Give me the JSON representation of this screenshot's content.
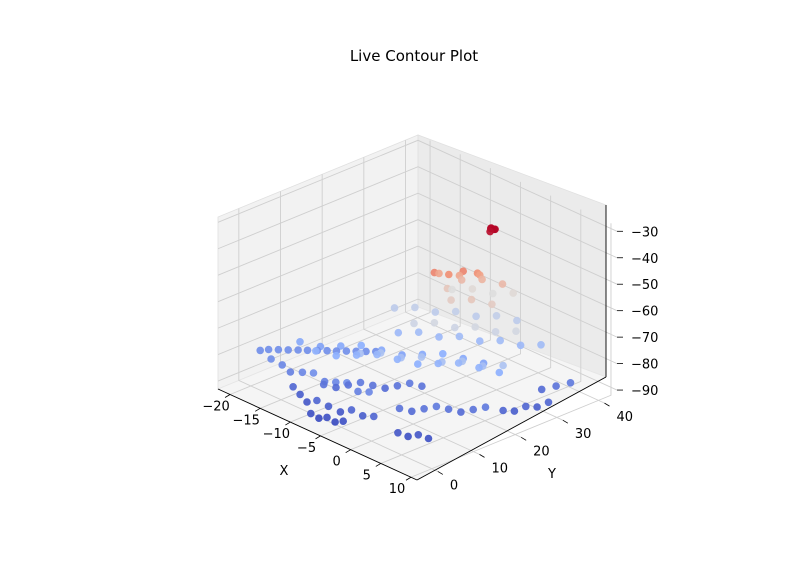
{
  "chart_data": {
    "type": "scatter",
    "projection": "3d",
    "title": "Live Contour Plot",
    "xlabel": "X",
    "ylabel": "Y",
    "zlabel": "",
    "xlim": [
      -22,
      11
    ],
    "ylim": [
      -5,
      43
    ],
    "zlim": [
      -93,
      -28
    ],
    "xticks": [
      "−20",
      "−15",
      "−10",
      "−5",
      "0",
      "5",
      "10"
    ],
    "yticks": [
      "0",
      "10",
      "20",
      "30",
      "40"
    ],
    "zticks": [
      "−30",
      "−40",
      "−50",
      "−60",
      "−70",
      "−80",
      "−90"
    ],
    "colormap": "coolwarm",
    "grid": true,
    "points": [
      [
        -19.5,
        1.5,
        -80
      ],
      [
        -19.0,
        2.8,
        -80
      ],
      [
        -18.2,
        4.0,
        -80
      ],
      [
        -17.4,
        5.2,
        -80
      ],
      [
        -16.6,
        6.4,
        -80
      ],
      [
        -15.8,
        7.5,
        -80
      ],
      [
        -15.0,
        8.7,
        -80
      ],
      [
        -14.2,
        9.9,
        -80
      ],
      [
        -13.4,
        11.0,
        -80
      ],
      [
        -12.6,
        12.2,
        -80
      ],
      [
        -11.8,
        13.4,
        -80
      ],
      [
        -11.0,
        14.6,
        -80
      ],
      [
        -10.2,
        15.8,
        -80
      ],
      [
        -17.0,
        0.5,
        -80
      ],
      [
        -15.5,
        1.0,
        -81
      ],
      [
        -14.0,
        0.8,
        -82
      ],
      [
        -12.5,
        1.5,
        -81
      ],
      [
        -11.0,
        2.0,
        -80
      ],
      [
        -9.5,
        2.5,
        -82
      ],
      [
        -8.0,
        3.0,
        -81
      ],
      [
        -6.5,
        3.5,
        -80
      ],
      [
        -5.0,
        4.0,
        -82
      ],
      [
        -3.5,
        4.5,
        -81
      ],
      [
        -13.0,
        0.0,
        -86
      ],
      [
        -11.5,
        -0.5,
        -87
      ],
      [
        -10.0,
        -1.0,
        -88
      ],
      [
        -8.5,
        -0.8,
        -86
      ],
      [
        -7.0,
        -0.2,
        -87
      ],
      [
        -5.5,
        0.5,
        -88
      ],
      [
        -4.0,
        1.0,
        -86
      ],
      [
        -2.5,
        1.5,
        -87
      ],
      [
        -1.0,
        2.0,
        -86
      ],
      [
        -8.0,
        -3.0,
        -89
      ],
      [
        -7.0,
        -2.5,
        -90
      ],
      [
        -6.0,
        -2.0,
        -89
      ],
      [
        -5.0,
        -1.5,
        -90
      ],
      [
        -4.0,
        -1.0,
        -89
      ],
      [
        -10.0,
        3.0,
        -84
      ],
      [
        -9.0,
        4.5,
        -85
      ],
      [
        -8.0,
        6.0,
        -84
      ],
      [
        -7.0,
        7.5,
        -83
      ],
      [
        -6.0,
        9.0,
        -84
      ],
      [
        -5.0,
        10.5,
        -85
      ],
      [
        -4.0,
        12.0,
        -84
      ],
      [
        -3.0,
        13.5,
        -83
      ],
      [
        -2.0,
        15.0,
        -84
      ],
      [
        0.5,
        6.0,
        -84
      ],
      [
        1.5,
        7.5,
        -85
      ],
      [
        2.5,
        9.0,
        -84
      ],
      [
        3.5,
        10.5,
        -83
      ],
      [
        4.5,
        12.0,
        -84
      ],
      [
        5.5,
        13.5,
        -85
      ],
      [
        6.5,
        15.0,
        -84
      ],
      [
        7.5,
        16.5,
        -83
      ],
      [
        3.0,
        2.0,
        -88
      ],
      [
        4.0,
        3.0,
        -89
      ],
      [
        5.0,
        4.0,
        -88
      ],
      [
        6.0,
        5.0,
        -89
      ],
      [
        8.0,
        20.0,
        -86
      ],
      [
        8.5,
        22.0,
        -87
      ],
      [
        9.0,
        24.0,
        -86
      ],
      [
        9.5,
        26.0,
        -87
      ],
      [
        10.0,
        28.0,
        -86
      ],
      [
        7.5,
        30.0,
        -85
      ],
      [
        8.5,
        32.0,
        -84
      ],
      [
        9.5,
        34.0,
        -83
      ],
      [
        -16.0,
        6.0,
        -76
      ],
      [
        -14.0,
        8.0,
        -77
      ],
      [
        -12.0,
        10.0,
        -76
      ],
      [
        -10.0,
        12.0,
        -75
      ],
      [
        -8.0,
        14.0,
        -76
      ],
      [
        -6.0,
        16.0,
        -77
      ],
      [
        -4.0,
        18.0,
        -76
      ],
      [
        -2.0,
        20.0,
        -75
      ],
      [
        0.0,
        22.0,
        -76
      ],
      [
        2.0,
        24.0,
        -77
      ],
      [
        -12.0,
        4.0,
        -74
      ],
      [
        -10.0,
        6.0,
        -75
      ],
      [
        -8.0,
        8.0,
        -74
      ],
      [
        -6.0,
        10.0,
        -73
      ],
      [
        -4.0,
        12.0,
        -74
      ],
      [
        -2.0,
        14.0,
        -75
      ],
      [
        0.0,
        16.0,
        -74
      ],
      [
        2.0,
        18.0,
        -73
      ],
      [
        4.0,
        20.0,
        -74
      ],
      [
        6.0,
        22.0,
        -75
      ],
      [
        -8.0,
        18.0,
        -72
      ],
      [
        -6.0,
        20.0,
        -71
      ],
      [
        -4.0,
        22.0,
        -72
      ],
      [
        -2.0,
        24.0,
        -71
      ],
      [
        0.0,
        26.0,
        -72
      ],
      [
        2.0,
        28.0,
        -71
      ],
      [
        4.0,
        30.0,
        -72
      ],
      [
        6.0,
        32.0,
        -71
      ],
      [
        -6.0,
        6.0,
        -70
      ],
      [
        -4.0,
        8.0,
        -69
      ],
      [
        -2.0,
        10.0,
        -70
      ],
      [
        0.0,
        12.0,
        -69
      ],
      [
        2.0,
        14.0,
        -70
      ],
      [
        4.0,
        16.0,
        -69
      ],
      [
        6.0,
        18.0,
        -70
      ],
      [
        8.0,
        20.0,
        -69
      ],
      [
        -10.0,
        20.0,
        -66
      ],
      [
        -8.0,
        22.0,
        -65
      ],
      [
        -6.0,
        24.0,
        -66
      ],
      [
        -4.0,
        26.0,
        -65
      ],
      [
        -2.0,
        28.0,
        -66
      ],
      [
        0.0,
        30.0,
        -65
      ],
      [
        2.0,
        32.0,
        -66
      ],
      [
        -4.0,
        16.0,
        -63
      ],
      [
        -2.0,
        18.0,
        -62
      ],
      [
        0.0,
        20.0,
        -63
      ],
      [
        2.0,
        22.0,
        -62
      ],
      [
        4.0,
        24.0,
        -63
      ],
      [
        6.0,
        26.0,
        -62
      ],
      [
        -6.0,
        28.0,
        -60
      ],
      [
        -4.0,
        30.0,
        -59
      ],
      [
        -2.0,
        32.0,
        -60
      ],
      [
        0.0,
        34.0,
        -59
      ],
      [
        -2.0,
        22.0,
        -56
      ],
      [
        0.0,
        24.0,
        -55
      ],
      [
        2.0,
        26.0,
        -56
      ],
      [
        -4.0,
        24.0,
        -55
      ],
      [
        -3.0,
        26.0,
        -52
      ],
      [
        -1.0,
        28.0,
        -51
      ],
      [
        1.0,
        30.0,
        -52
      ],
      [
        -2.0,
        24.0,
        -48
      ],
      [
        0.0,
        26.0,
        -47
      ],
      [
        -4.0,
        22.0,
        -48
      ],
      [
        -1.0,
        20.0,
        -44
      ],
      [
        0.0,
        22.0,
        -43
      ],
      [
        1.0,
        24.0,
        -44
      ],
      [
        -2.0,
        18.0,
        -43
      ],
      [
        0.5,
        28.0,
        -30
      ],
      [
        0.8,
        28.5,
        -30.5
      ],
      [
        1.0,
        28.0,
        -30
      ],
      [
        0.6,
        27.6,
        -31
      ],
      [
        0.3,
        28.2,
        -30.5
      ]
    ]
  }
}
